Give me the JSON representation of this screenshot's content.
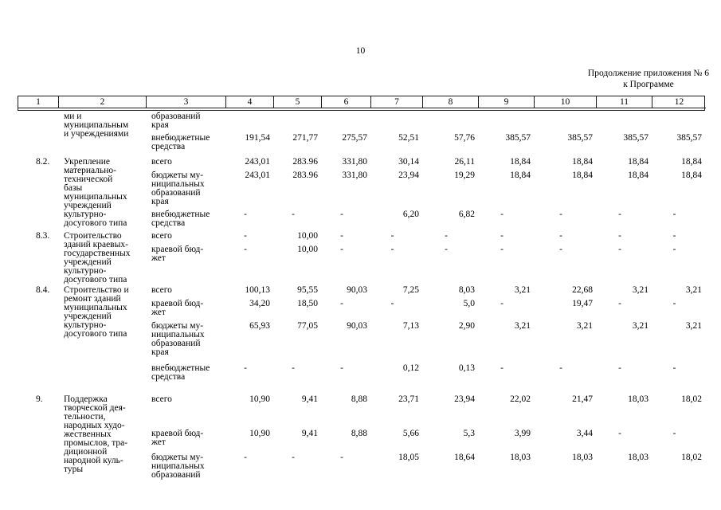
{
  "page": {
    "number": "10"
  },
  "annotation": {
    "line1": "Продолжение приложения № 6",
    "line2": "к Программе"
  },
  "table": {
    "columns": [
      "1",
      "2",
      "3",
      "4",
      "5",
      "6",
      "7",
      "8",
      "9",
      "10",
      "11",
      "12"
    ],
    "groups": [
      {
        "num": "",
        "name": "ми и\nмуниципальным\nи учреждениями",
        "subrows": [
          {
            "label": "образований\nкрая",
            "values": []
          },
          {
            "label": "внебюджетные\nсредства",
            "values": [
              "191,54",
              "271,77",
              "275,57",
              "52,51",
              "57,76",
              "385,57",
              "385,57",
              "385,57",
              "385,57"
            ]
          }
        ]
      },
      {
        "num": "8.2.",
        "name": "Укрепление\nматериально-\nтехнической\nбазы\nмуниципальных\nучреждений\nкультурно-\nдосугового типа",
        "subrows": [
          {
            "label": "всего",
            "values": [
              "243,01",
              "283.96",
              "331,80",
              "30,14",
              "26,11",
              "18,84",
              "18,84",
              "18,84",
              "18,84"
            ]
          },
          {
            "label": "бюджеты му-\nниципальных\nобразований\nкрая",
            "values": [
              "243,01",
              "283.96",
              "331,80",
              "23,94",
              "19,29",
              "18,84",
              "18,84",
              "18,84",
              "18,84"
            ]
          },
          {
            "label": "внебюджетные\nсредства",
            "values": [
              "-",
              "-",
              "-",
              "6,20",
              "6,82",
              "-",
              "-",
              "-",
              "-"
            ]
          }
        ]
      },
      {
        "num": "8.3.",
        "name": "Строительство\nзданий краевых-\nгосударственных\nучреждений\nкультурно-\nдосугового типа",
        "subrows": [
          {
            "label": "всего",
            "values": [
              "-",
              "10,00",
              "-",
              "-",
              "-",
              "-",
              "-",
              "-",
              "-"
            ]
          },
          {
            "label": "краевой бюд-\nжет",
            "values": [
              "-",
              "10,00",
              "-",
              "-",
              "-",
              "-",
              "-",
              "-",
              "-"
            ]
          }
        ]
      },
      {
        "num": "8.4.",
        "name": "Строительство и\nремонт зданий\nмуниципальных\nучреждений\nкультурно-\nдосугового типа",
        "subrows": [
          {
            "label": "всего",
            "values": [
              "100,13",
              "95,55",
              "90,03",
              "7,25",
              "8,03",
              "3,21",
              "22,68",
              "3,21",
              "3,21"
            ]
          },
          {
            "label": "краевой бюд-\nжет",
            "values": [
              "34,20",
              "18,50",
              "-",
              "-",
              "5,0",
              "-",
              "19,47",
              "-",
              "-"
            ]
          },
          {
            "label": "бюджеты му-\nниципальных\nобразований\nкрая",
            "values": [
              "65,93",
              "77,05",
              "90,03",
              "7,13",
              "2,90",
              "3,21",
              "3,21",
              "3,21",
              "3,21"
            ]
          },
          {
            "label": "внебюджетные\nсредства",
            "values": [
              "-",
              "-",
              "-",
              "0,12",
              "0,13",
              "-",
              "-",
              "-",
              "-"
            ]
          }
        ]
      },
      {
        "num": "9.",
        "name": "Поддержка\nтворческой дея-\nтельности,\nнародных худо-\nжественных\nпромыслов, тра-\nдиционной\nнародной куль-\nтуры",
        "subrows": [
          {
            "label": "всего",
            "values": [
              "10,90",
              "9,41",
              "8,88",
              "23,71",
              "23,94",
              "22,02",
              "21,47",
              "18,03",
              "18,02"
            ]
          },
          {
            "label": "краевой бюд-\nжет",
            "values": [
              "10,90",
              "9,41",
              "8,88",
              "5,66",
              "5,3",
              "3,99",
              "3,44",
              "-",
              "-"
            ]
          },
          {
            "label": "бюджеты му-\nниципальных\nобразований",
            "values": [
              "-",
              "-",
              "-",
              "18,05",
              "18,64",
              "18,03",
              "18,03",
              "18,03",
              "18,02"
            ]
          }
        ]
      }
    ]
  }
}
